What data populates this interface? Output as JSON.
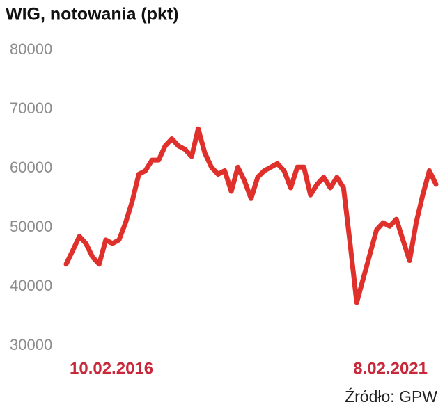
{
  "chart_data": {
    "type": "line",
    "title": "WIG, notowania (pkt)",
    "source": "Źródło: GPW",
    "categories": [
      "10.02.2016",
      null,
      null,
      null,
      null,
      null,
      null,
      null,
      null,
      null,
      null,
      null,
      null,
      null,
      null,
      null,
      null,
      null,
      null,
      null,
      null,
      null,
      null,
      null,
      null,
      null,
      null,
      null,
      null,
      null,
      null,
      null,
      null,
      null,
      null,
      null,
      null,
      null,
      null,
      null,
      null,
      null,
      null,
      null,
      null,
      null,
      null,
      null,
      null,
      null,
      null,
      null,
      null,
      null,
      null,
      null,
      "8.02.2021"
    ],
    "series": [
      {
        "name": "WIG",
        "color": "#e0302b",
        "values": [
          43800,
          46100,
          48500,
          47300,
          45000,
          43800,
          47900,
          47300,
          47900,
          50800,
          54400,
          59000,
          59600,
          61400,
          61400,
          63800,
          65000,
          63800,
          63200,
          62000,
          66700,
          62600,
          60200,
          59000,
          59600,
          56100,
          60200,
          57900,
          54900,
          58500,
          59600,
          60200,
          60800,
          59600,
          56700,
          60200,
          60200,
          55500,
          57300,
          58500,
          56700,
          58500,
          56700,
          47300,
          37300,
          41400,
          45500,
          49600,
          50800,
          50200,
          51400,
          47900,
          44400,
          50800,
          55500,
          59600,
          57300
        ]
      }
    ],
    "ylim": [
      30000,
      80000
    ],
    "yticks": [
      30000,
      40000,
      50000,
      60000,
      70000,
      80000
    ],
    "grid": false
  }
}
